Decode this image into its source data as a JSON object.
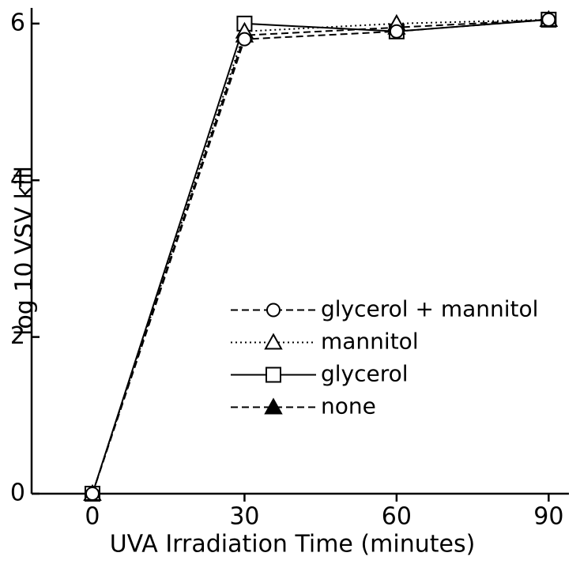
{
  "chart_data": {
    "type": "line",
    "xlabel": "UVA Irradiation Time (minutes)",
    "ylabel": "log 10 VSV kill",
    "x": [
      0,
      30,
      60,
      90
    ],
    "series": [
      {
        "name": "glycerol + mannitol",
        "color": "#000000",
        "marker": "circle",
        "filled": false,
        "dash": "dashed",
        "values": [
          0,
          5.8,
          5.9,
          6.05
        ]
      },
      {
        "name": "mannitol",
        "color": "#000000",
        "marker": "triangle",
        "filled": false,
        "dash": "dotted",
        "values": [
          0,
          5.9,
          6.0,
          6.05
        ]
      },
      {
        "name": "glycerol",
        "color": "#000000",
        "marker": "square",
        "filled": false,
        "dash": "solid",
        "values": [
          0,
          6.0,
          5.9,
          6.05
        ]
      },
      {
        "name": "none",
        "color": "#000000",
        "marker": "triangle",
        "filled": true,
        "dash": "dashed",
        "values": [
          0,
          5.85,
          5.95,
          6.05
        ]
      }
    ],
    "xlim": [
      -12,
      94
    ],
    "xticks": [
      0,
      30,
      60,
      90
    ],
    "ylim": [
      0,
      6.2
    ],
    "yticks": [
      0,
      2,
      4,
      6
    ],
    "grid": false,
    "legend": "center right"
  }
}
